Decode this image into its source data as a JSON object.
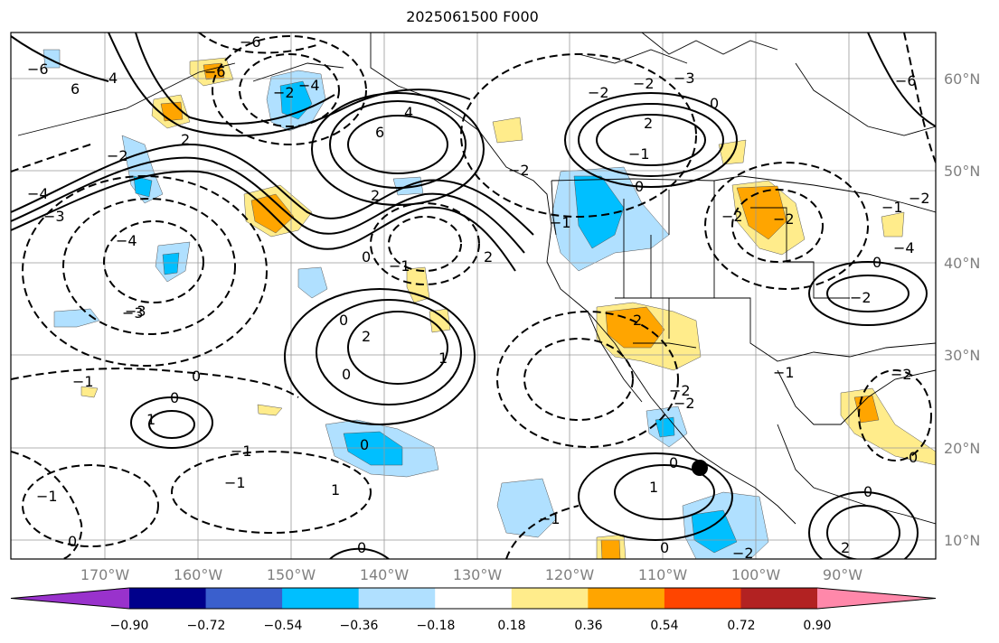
{
  "title": "2025061500 F000",
  "lon_ticks": [
    "170°W",
    "160°W",
    "150°W",
    "140°W",
    "130°W",
    "120°W",
    "110°W",
    "100°W",
    "90°W"
  ],
  "lat_ticks": [
    "60°N",
    "50°N",
    "40°N",
    "30°N",
    "20°N",
    "10°N"
  ],
  "colorbar": {
    "colors": [
      "#9932cc",
      "#00008b",
      "#3a5fcd",
      "#00bfff",
      "#b0e0ff",
      "#ffffff",
      "#ffec8b",
      "#ffa500",
      "#ff4500",
      "#b22222",
      "#ff88aa"
    ],
    "tick_labels": [
      "−0.90",
      "−0.72",
      "−0.54",
      "−0.36",
      "−0.18",
      "0.18",
      "0.36",
      "0.54",
      "0.72",
      "0.90"
    ]
  },
  "contour_labels": [
    "−6",
    "−6",
    "−3",
    "−4",
    "−2",
    "−2",
    "−4",
    "−6",
    "−2",
    "2",
    "4",
    "6",
    "6",
    "4",
    "−4",
    "−3",
    "−1",
    "−4",
    "−6",
    "−3",
    "−2",
    "2",
    "−2",
    "2",
    "0",
    "−1",
    "−3",
    "0",
    "1",
    "2",
    "0",
    "0",
    "1",
    "−1",
    "1",
    "0",
    "−1",
    "−1",
    "0",
    "−1",
    "0",
    "1",
    "0",
    "−2",
    "−2",
    "−1",
    "0",
    "2",
    "2",
    "−1",
    "0",
    "0",
    "0",
    "−2",
    "−2",
    "0",
    "−1",
    "−2",
    "−2",
    "−1",
    "0",
    "2",
    "0",
    "−2",
    "−2"
  ],
  "marker": "filled-circle"
}
